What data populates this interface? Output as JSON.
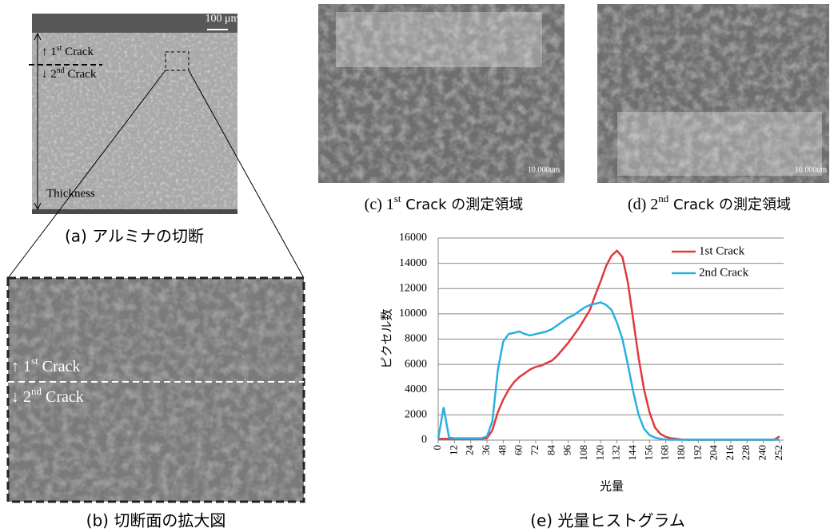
{
  "panel_a": {
    "scale": "100 μm",
    "crack1": [
      "↑ 1",
      "st",
      " Crack"
    ],
    "crack2": [
      "↓ 2",
      "nd",
      " Crack"
    ],
    "thickness": "Thickness",
    "caption": "(a)  アルミナの切断"
  },
  "panel_b": {
    "crack1": [
      "↑ 1",
      "st",
      " Crack"
    ],
    "crack2": [
      "↓ 2",
      "nd",
      " Crack"
    ],
    "caption": "(b)  切断面の拡大図"
  },
  "panel_c": {
    "scale": "10.000um",
    "caption": [
      "(c) 1",
      "st",
      " Crack の測定領域"
    ]
  },
  "panel_d": {
    "scale": "10.000um",
    "caption": [
      "(d) 2",
      "nd",
      " Crack の測定領域"
    ]
  },
  "chart_data": {
    "type": "line",
    "ylabel": "ピクセル数",
    "xlabel": "光量",
    "caption": "(e)  光量ヒストグラム",
    "x": [
      0,
      4,
      8,
      12,
      16,
      20,
      24,
      28,
      32,
      36,
      40,
      44,
      48,
      52,
      56,
      60,
      64,
      68,
      72,
      76,
      80,
      84,
      88,
      92,
      96,
      100,
      104,
      108,
      112,
      116,
      120,
      124,
      128,
      132,
      136,
      140,
      144,
      148,
      152,
      156,
      160,
      164,
      168,
      172,
      176,
      180,
      184,
      188,
      192,
      196,
      200,
      204,
      208,
      212,
      216,
      220,
      224,
      228,
      232,
      236,
      240,
      244,
      248,
      252
    ],
    "xlim": [
      0,
      255
    ],
    "xticks": [
      0,
      12,
      24,
      36,
      48,
      60,
      72,
      84,
      96,
      108,
      120,
      132,
      144,
      156,
      168,
      180,
      192,
      204,
      216,
      228,
      240,
      252
    ],
    "ylim": [
      0,
      16000
    ],
    "yticks": [
      0,
      2000,
      4000,
      6000,
      8000,
      10000,
      12000,
      14000,
      16000
    ],
    "grid": true,
    "legend": "top-right",
    "series": [
      {
        "name": "1st Crack",
        "color": "#e0393e",
        "values": [
          100,
          100,
          100,
          100,
          100,
          100,
          100,
          100,
          100,
          150,
          800,
          2200,
          3200,
          4000,
          4600,
          5000,
          5300,
          5600,
          5800,
          5900,
          6100,
          6300,
          6700,
          7200,
          7700,
          8300,
          8900,
          9600,
          10300,
          11500,
          12600,
          13800,
          14600,
          15000,
          14500,
          12500,
          9500,
          6500,
          4000,
          2200,
          1000,
          500,
          250,
          150,
          100,
          50,
          30,
          30,
          30,
          30,
          30,
          30,
          30,
          30,
          30,
          30,
          30,
          30,
          30,
          30,
          30,
          30,
          30,
          300
        ]
      },
      {
        "name": "2nd Crack",
        "color": "#2ab0e0",
        "values": [
          100,
          2600,
          200,
          150,
          150,
          150,
          150,
          150,
          150,
          300,
          1500,
          5500,
          7800,
          8400,
          8500,
          8600,
          8400,
          8300,
          8400,
          8500,
          8600,
          8800,
          9100,
          9400,
          9700,
          9900,
          10200,
          10500,
          10700,
          10800,
          10900,
          10700,
          10300,
          9300,
          8000,
          6000,
          3800,
          2000,
          900,
          400,
          200,
          100,
          50,
          30,
          30,
          30,
          30,
          30,
          30,
          30,
          30,
          30,
          30,
          30,
          30,
          30,
          30,
          30,
          30,
          30,
          30,
          30,
          30,
          30
        ]
      }
    ]
  }
}
